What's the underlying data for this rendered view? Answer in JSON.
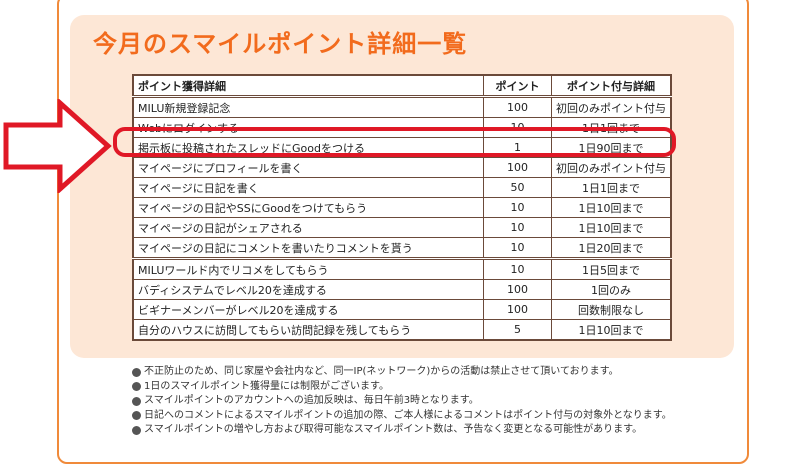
{
  "title": "今月のスマイルポイント詳細一覧",
  "table": {
    "headers": {
      "detail": "ポイント獲得詳細",
      "points": "ポイント",
      "limit": "ポイント付与詳細"
    },
    "rows": [
      {
        "detail": "MILU新規登録記念",
        "points": "100",
        "limit": "初回のみポイント付与"
      },
      {
        "detail": "Webにログインする",
        "points": "10",
        "limit": "1日1回まで"
      },
      {
        "detail": "掲示板に投稿されたスレッドにGoodをつける",
        "points": "1",
        "limit": "1日90回まで"
      },
      {
        "detail": "マイページにプロフィールを書く",
        "points": "100",
        "limit": "初回のみポイント付与"
      },
      {
        "detail": "マイページに日記を書く",
        "points": "50",
        "limit": "1日1回まで"
      },
      {
        "detail": "マイページの日記やSSにGoodをつけてもらう",
        "points": "10",
        "limit": "1日10回まで"
      },
      {
        "detail": "マイページの日記がシェアされる",
        "points": "10",
        "limit": "1日10回まで"
      },
      {
        "detail": "マイページの日記にコメントを書いたりコメントを貰う",
        "points": "10",
        "limit": "1日20回まで"
      },
      {
        "detail": "MILUワールド内でリコメをしてもらう",
        "points": "10",
        "limit": "1日5回まで"
      },
      {
        "detail": "バディシステムでレベル20を達成する",
        "points": "100",
        "limit": "1回のみ"
      },
      {
        "detail": "ビギナーメンバーがレベル20を達成する",
        "points": "100",
        "limit": "回数制限なし"
      },
      {
        "detail": "自分のハウスに訪問してもらい訪問記録を残してもらう",
        "points": "5",
        "limit": "1日10回まで"
      }
    ]
  },
  "notes": [
    "不正防止のため、同じ家屋や会社内など、同一IP(ネットワーク)からの活動は禁止させて頂いております。",
    "1日のスマイルポイント獲得量には制限がございます。",
    "スマイルポイントのアカウントへの追加反映は、毎日午前3時となります。",
    "日記へのコメントによるスマイルポイントの追加の際、ご本人様によるコメントはポイント付与の対象外となります。",
    "スマイルポイントの増やし方および取得可能なスマイルポイント数は、予告なく変更となる可能性があります。"
  ],
  "colors": {
    "title": "#f26b1d",
    "frame": "#f08a3a",
    "panel": "#fde7d6",
    "highlight": "#e01826",
    "table_border": "#6b4a3a"
  }
}
